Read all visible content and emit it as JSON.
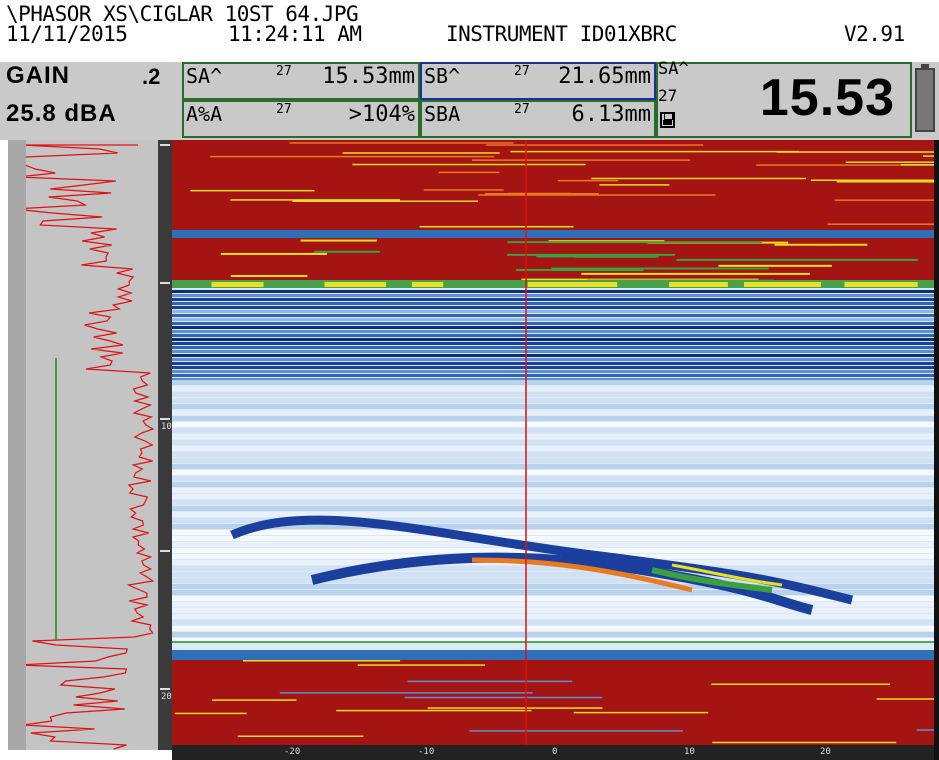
{
  "header": {
    "file_path": "\\PHASOR XS\\CIGLAR 10ST 64.JPG",
    "date": "11/11/2015",
    "time": "11:24:11 AM",
    "instrument_id": "INSTRUMENT ID01XBRC",
    "version": "V2.91"
  },
  "gain": {
    "label": "GAIN",
    "step": ".2",
    "value": "25.8 dBA"
  },
  "measurements": {
    "sa_peak": {
      "label": "SA^",
      "gate": "27",
      "value": "15.53mm"
    },
    "a_pct": {
      "label": "A%A",
      "gate": "27",
      "value": ">104%"
    },
    "sb_peak": {
      "label": "SB^",
      "gate": "27",
      "value": "21.65mm"
    },
    "sba": {
      "label": "SBA",
      "gate": "27",
      "value": "6.13mm"
    }
  },
  "big_reading": {
    "label": "SA^",
    "gate": "27",
    "value": "15.53",
    "save_icon": "floppy-disk-icon",
    "battery_icon": "battery-icon"
  },
  "scale": {
    "depth_labels": [
      "10",
      "20"
    ],
    "bottom_labels": [
      "-20",
      "-10",
      "0",
      "10",
      "20"
    ]
  },
  "colors": {
    "panel_bg": "#c9c9c9",
    "cell_border_green": "#2a6b2a",
    "cell_border_blue": "#1a2f9c",
    "cursor_red": "#e01010",
    "gate_green": "#1a8a1a",
    "scan_red": "#a31412",
    "scan_yellow": "#e8e020",
    "scan_blue": "#1a3f9c",
    "scan_light": "#dbe9f6"
  }
}
